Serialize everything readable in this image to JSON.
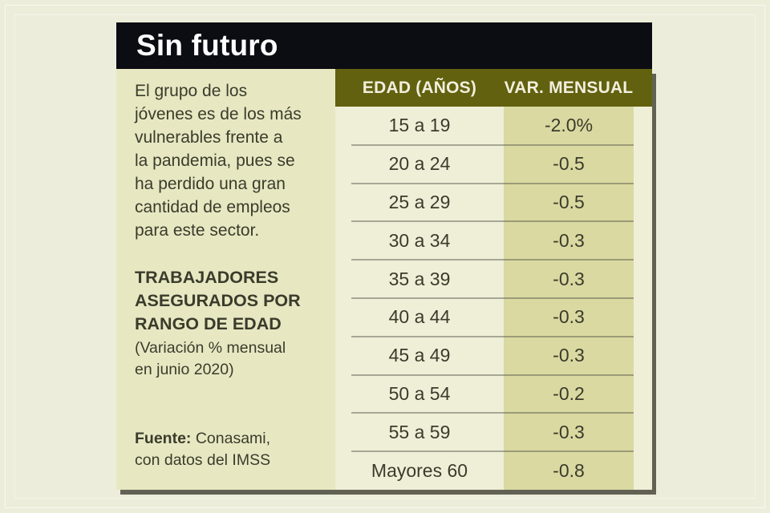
{
  "colors": {
    "page_bg": "#eceedb",
    "panel_bg": "#e7e8c2",
    "title_bar_bg": "#0c0c13",
    "title_text": "#ffffff",
    "header_bg": "#61610f",
    "header_text": "#f2efdd",
    "age_col_bg": "#efefd8",
    "value_col_bg": "#d9d9a1",
    "body_text": "#3b3b2c",
    "shadow": "rgba(64,62,50,0.8)"
  },
  "header": {
    "title": "Sin futuro"
  },
  "sidebar": {
    "description_lines": [
      "El grupo de los",
      "jóvenes es de los más",
      "vulnerables frente a",
      "la pandemia, pues se",
      "ha perdido una gran",
      "cantidad de empleos",
      "para este sector."
    ],
    "subtitle_lines": [
      "TRABAJADORES",
      "ASEGURADOS POR",
      "RANGO DE EDAD"
    ],
    "note_lines": [
      "(Variación % mensual",
      "en junio 2020)"
    ],
    "source_label": "Fuente:",
    "source_name": "Conasami,",
    "source_line2": "con datos del IMSS"
  },
  "table": {
    "columns": [
      "EDAD (AÑOS)",
      "VAR. MENSUAL"
    ],
    "rows": [
      {
        "age": "15 a 19",
        "value": "-2.0%"
      },
      {
        "age": "20 a 24",
        "value": "-0.5"
      },
      {
        "age": "25 a 29",
        "value": "-0.5"
      },
      {
        "age": "30 a 34",
        "value": "-0.3"
      },
      {
        "age": "35 a 39",
        "value": "-0.3"
      },
      {
        "age": "40 a 44",
        "value": "-0.3"
      },
      {
        "age": "45 a 49",
        "value": "-0.3"
      },
      {
        "age": "50 a 54",
        "value": "-0.2"
      },
      {
        "age": "55 a 59",
        "value": "-0.3"
      },
      {
        "age": "Mayores 60",
        "value": "-0.8"
      }
    ]
  },
  "chart_data": {
    "type": "table",
    "title": "Sin futuro",
    "subtitle": "TRABAJADORES ASEGURADOS POR RANGO DE EDAD (Variación % mensual en junio 2020)",
    "columns": [
      "EDAD (AÑOS)",
      "VAR. MENSUAL"
    ],
    "categories": [
      "15 a 19",
      "20 a 24",
      "25 a 29",
      "30 a 34",
      "35 a 39",
      "40 a 44",
      "45 a 49",
      "50 a 54",
      "55 a 59",
      "Mayores 60"
    ],
    "values": [
      -2.0,
      -0.5,
      -0.5,
      -0.3,
      -0.3,
      -0.3,
      -0.3,
      -0.2,
      -0.3,
      -0.8
    ],
    "unit": "%",
    "source": "Fuente: Conasami, con datos del IMSS"
  }
}
